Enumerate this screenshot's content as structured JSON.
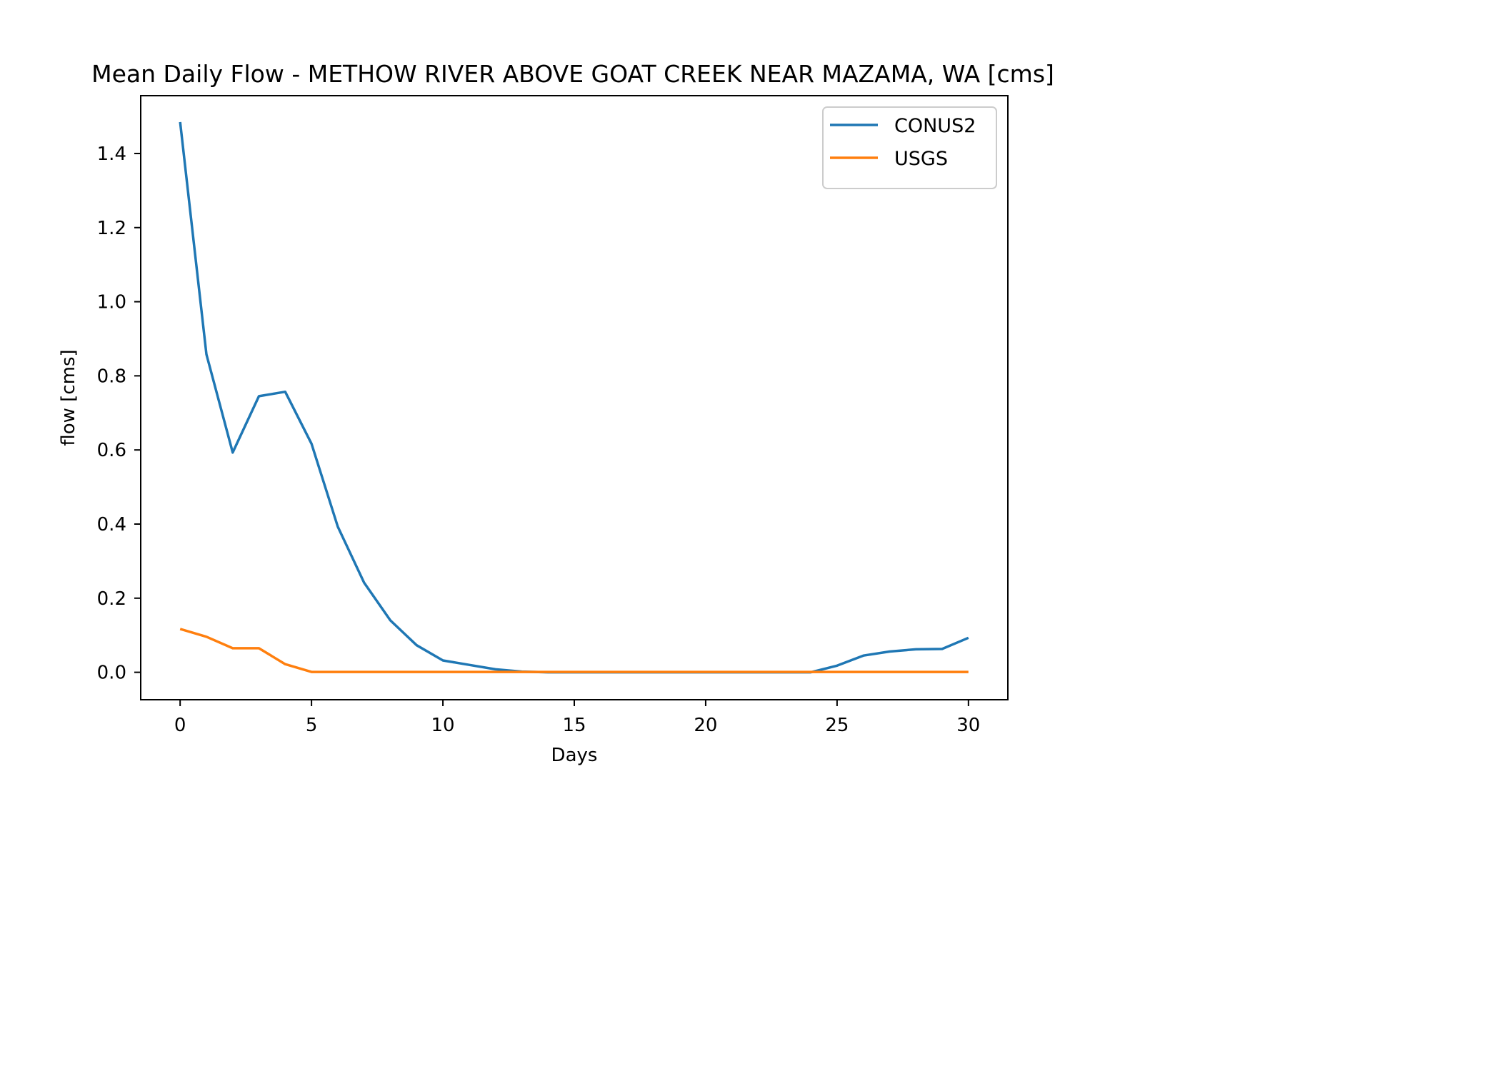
{
  "chart_data": {
    "type": "line",
    "title": "Mean Daily Flow - METHOW RIVER ABOVE GOAT CREEK NEAR MAZAMA, WA [cms]",
    "xlabel": "Days",
    "ylabel": "flow [cms]",
    "xlim": [
      -1.5,
      31.5
    ],
    "ylim": [
      -0.074,
      1.556
    ],
    "xticks": [
      0,
      5,
      10,
      15,
      20,
      25,
      30
    ],
    "yticks": [
      0.0,
      0.2,
      0.4,
      0.6,
      0.8,
      1.0,
      1.2,
      1.4
    ],
    "xtick_labels": [
      "0",
      "5",
      "10",
      "15",
      "20",
      "25",
      "30"
    ],
    "ytick_labels": [
      "0.0",
      "0.2",
      "0.4",
      "0.6",
      "0.8",
      "1.0",
      "1.2",
      "1.4"
    ],
    "legend_position": "upper right",
    "x": [
      0,
      1,
      2,
      3,
      4,
      5,
      6,
      7,
      8,
      9,
      10,
      11,
      12,
      13,
      14,
      15,
      16,
      17,
      18,
      19,
      20,
      21,
      22,
      23,
      24,
      25,
      26,
      27,
      28,
      29,
      30
    ],
    "series": [
      {
        "name": "CONUS2",
        "color": "#1f77b4",
        "values": [
          1.485,
          0.858,
          0.593,
          0.745,
          0.757,
          0.617,
          0.393,
          0.242,
          0.14,
          0.073,
          0.032,
          0.02,
          0.008,
          0.002,
          0,
          0,
          0,
          0,
          0,
          0,
          0,
          0,
          0,
          0,
          0,
          0.018,
          0.045,
          0.056,
          0.062,
          0.063,
          0.093
        ]
      },
      {
        "name": "USGS",
        "color": "#ff7f0e",
        "values": [
          0.117,
          0.096,
          0.065,
          0.065,
          0.022,
          0.001,
          0.001,
          0.001,
          0.001,
          0.001,
          0.001,
          0.001,
          0.001,
          0.001,
          0.001,
          0.001,
          0.001,
          0.001,
          0.001,
          0.001,
          0.001,
          0.001,
          0.001,
          0.001,
          0.001,
          0.001,
          0.001,
          0.001,
          0.001,
          0.001,
          0.001
        ]
      }
    ]
  }
}
